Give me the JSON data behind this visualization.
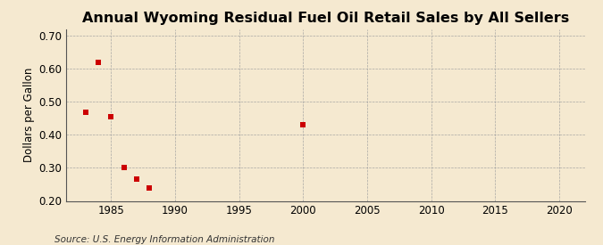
{
  "title": "Annual Wyoming Residual Fuel Oil Retail Sales by All Sellers",
  "ylabel": "Dollars per Gallon",
  "source": "Source: U.S. Energy Information Administration",
  "xlim": [
    1981.5,
    2022
  ],
  "ylim": [
    0.2,
    0.72
  ],
  "xticks": [
    1985,
    1990,
    1995,
    2000,
    2005,
    2010,
    2015,
    2020
  ],
  "yticks": [
    0.2,
    0.3,
    0.4,
    0.5,
    0.6,
    0.7
  ],
  "data_x": [
    1983,
    1984,
    1985,
    1986,
    1987,
    1988,
    2000
  ],
  "data_y": [
    0.47,
    0.62,
    0.455,
    0.3,
    0.265,
    0.24,
    0.43
  ],
  "marker_color": "#cc0000",
  "marker": "s",
  "marker_size": 4,
  "bg_color": "#f5e9d0",
  "plot_bg_color": "#f5e9d0",
  "grid_color": "#a0a0a0",
  "title_fontsize": 11.5,
  "label_fontsize": 8.5,
  "tick_fontsize": 8.5,
  "source_fontsize": 7.5
}
